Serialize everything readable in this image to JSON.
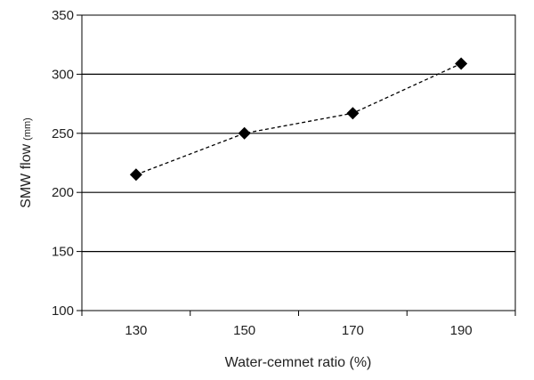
{
  "chart_data": {
    "type": "line",
    "title": "",
    "xlabel": "Water-cemnet ratio (%)",
    "ylabel": "SMW flow",
    "ylabel_unit": "(mm)",
    "categories": [
      "130",
      "150",
      "170",
      "190"
    ],
    "series": [
      {
        "values": [
          215,
          250,
          267,
          309
        ],
        "marker": "diamond",
        "line_style": "dashed",
        "color": "#000000"
      }
    ],
    "ylim": [
      100,
      350
    ],
    "yticks": [
      100,
      150,
      200,
      250,
      300,
      350
    ],
    "grid": "horizontal",
    "legend": "none"
  }
}
